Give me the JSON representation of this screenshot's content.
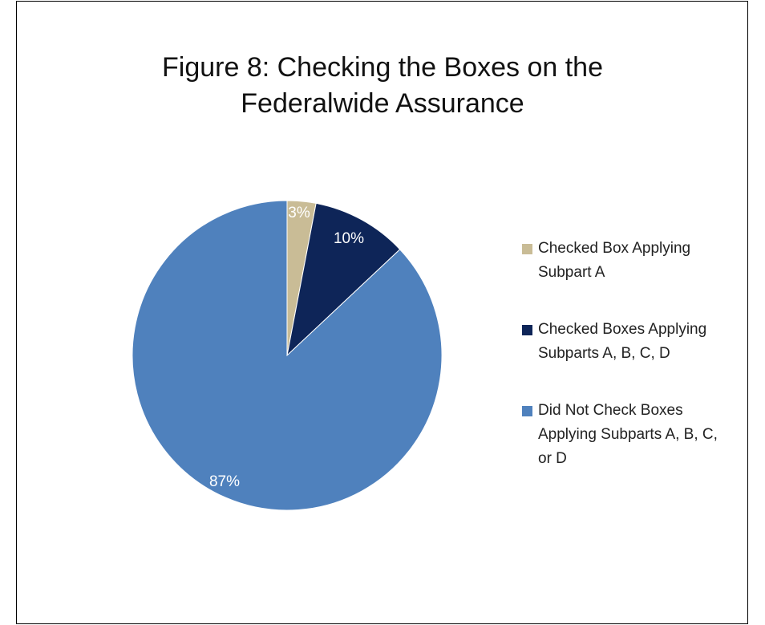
{
  "chart_data": {
    "type": "pie",
    "title_lines": [
      "Figure 8: Checking the Boxes on the",
      "Federalwide Assurance"
    ],
    "slices": [
      {
        "name": "Checked Box Applying\nSubpart A",
        "value": 3,
        "label": "3%",
        "color": "#C9BC96"
      },
      {
        "name": "Checked Boxes Applying\nSubparts A, B, C, D",
        "value": 10,
        "label": "10%",
        "color": "#0E2558"
      },
      {
        "name": "Did Not Check Boxes\nApplying Subparts A, B, C,\nor D",
        "value": 87,
        "label": "87%",
        "color": "#4F81BD"
      }
    ],
    "legend_position": "right"
  }
}
